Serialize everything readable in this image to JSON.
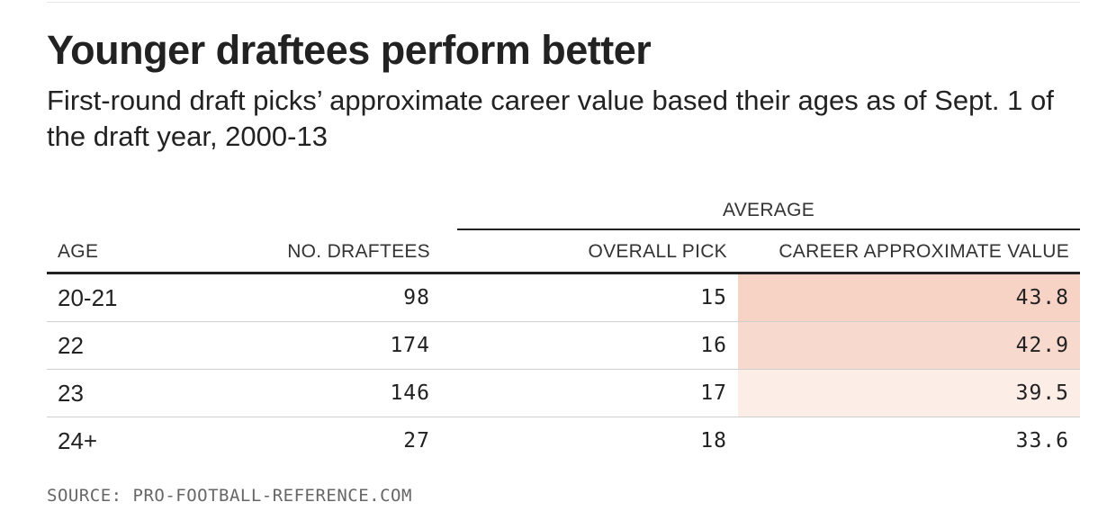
{
  "title": "Younger draftees perform better",
  "subtitle": "First-round draft picks’ approximate career value based their ages as of Sept. 1 of the draft year, 2000-13",
  "source": "SOURCE: PRO-FOOTBALL-REFERENCE.COM",
  "chart_data": {
    "type": "table",
    "title": "Younger draftees perform better",
    "subtitle": "First-round draft picks’ approximate career value based their ages as of Sept. 1 of the draft year, 2000-13",
    "group_header": "AVERAGE",
    "columns": [
      "AGE",
      "NO. DRAFTEES",
      "OVERALL PICK",
      "CAREER APPROXIMATE VALUE"
    ],
    "rows": [
      {
        "age": "20-21",
        "draftees": "98",
        "overall_pick": "15",
        "career_av": "43.8"
      },
      {
        "age": "22",
        "draftees": "174",
        "overall_pick": "16",
        "career_av": "42.9"
      },
      {
        "age": "23",
        "draftees": "146",
        "overall_pick": "17",
        "career_av": "39.5"
      },
      {
        "age": "24+",
        "draftees": "27",
        "overall_pick": "18",
        "career_av": "33.6"
      }
    ],
    "heatmap_color": "#f7d3c6"
  }
}
